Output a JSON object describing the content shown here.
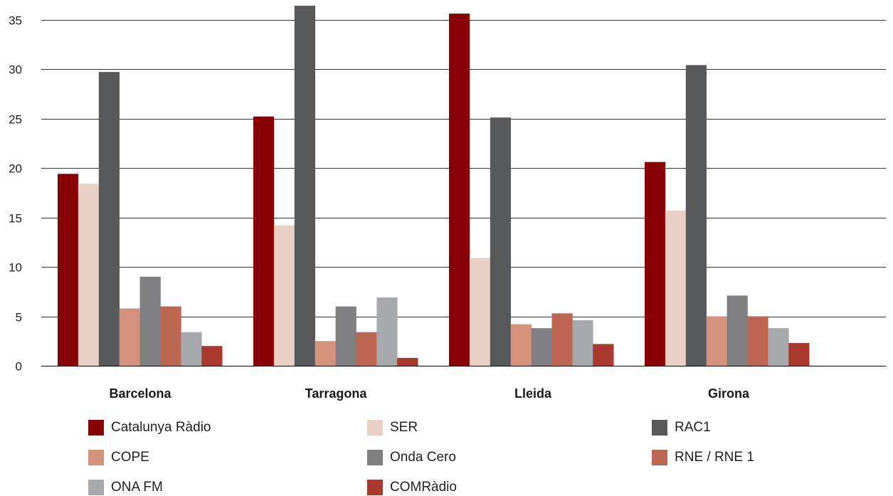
{
  "chart_data": {
    "type": "bar",
    "categories": [
      "Barcelona",
      "Tarragona",
      "Lleida",
      "Girona"
    ],
    "yticks": [
      "0",
      "5",
      "10",
      "15",
      "20",
      "25",
      "30",
      "35"
    ],
    "ylim": [
      0,
      36.5
    ],
    "grid": true,
    "legend_position": "bottom",
    "series": [
      {
        "name": "Catalunya Ràdio",
        "color": "#870005",
        "values": [
          19.4,
          25.2,
          35.6,
          20.6
        ]
      },
      {
        "name": "SER",
        "color": "#ebd0c6",
        "values": [
          18.4,
          14.2,
          10.9,
          15.7
        ]
      },
      {
        "name": "RAC1",
        "color": "#58595b",
        "values": [
          29.7,
          36.4,
          25.1,
          30.4
        ]
      },
      {
        "name": "COPE",
        "color": "#d4917c",
        "values": [
          5.8,
          2.5,
          4.2,
          5.0
        ]
      },
      {
        "name": "Onda Cero",
        "color": "#808083",
        "values": [
          9.0,
          6.0,
          3.8,
          7.1
        ]
      },
      {
        "name": "RNE / RNE 1",
        "color": "#bd6652",
        "values": [
          6.0,
          3.4,
          5.3,
          5.0
        ]
      },
      {
        "name": "ONA FM",
        "color": "#a7a8ab",
        "values": [
          3.4,
          6.9,
          4.6,
          3.8
        ]
      },
      {
        "name": "COMRàdio",
        "color": "#a9382d",
        "values": [
          2.0,
          0.8,
          2.2,
          2.3
        ]
      }
    ]
  }
}
